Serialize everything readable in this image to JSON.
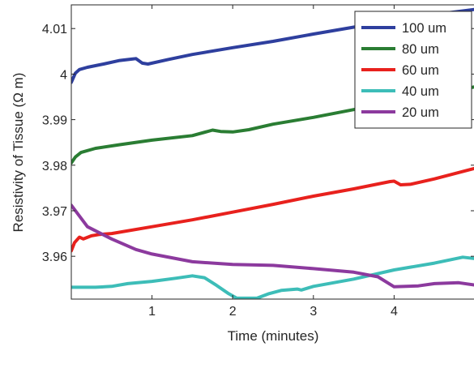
{
  "chart_data": {
    "type": "line",
    "xlabel": "Time (minutes)",
    "ylabel": "Resistivity of Tissue (Ω m)",
    "xlim": [
      0,
      5
    ],
    "ylim": [
      3.9506,
      4.0152
    ],
    "x_ticks": [
      1,
      2,
      3,
      4
    ],
    "x_tick_labels": [
      "1",
      "2",
      "3",
      "4"
    ],
    "y_ticks": [
      3.96,
      3.97,
      3.98,
      3.99,
      4.0,
      4.01
    ],
    "y_tick_labels": [
      "3.96",
      "3.97",
      "3.98",
      "3.99",
      "4",
      "4.01"
    ],
    "grid": false,
    "legend_position": "top-right",
    "series": [
      {
        "name": "100 um",
        "color": "#2e3f9e",
        "x": [
          0,
          0.05,
          0.1,
          0.2,
          0.4,
          0.6,
          0.75,
          0.8,
          0.88,
          0.95,
          1.2,
          1.5,
          2.0,
          2.5,
          3.0,
          3.5,
          4.0,
          4.5,
          5.0
        ],
        "y": [
          3.9982,
          4.0002,
          4.001,
          4.0015,
          4.0022,
          4.003,
          4.0033,
          4.0034,
          4.0024,
          4.0022,
          4.0032,
          4.0043,
          4.0058,
          4.0072,
          4.0088,
          4.0103,
          4.0118,
          4.0131,
          4.0142
        ]
      },
      {
        "name": "80 um",
        "color": "#2a7d33",
        "x": [
          0,
          0.05,
          0.12,
          0.3,
          0.6,
          1.0,
          1.5,
          1.75,
          1.85,
          2.0,
          2.2,
          2.5,
          3.0,
          3.5,
          4.0,
          4.5,
          5.0
        ],
        "y": [
          3.9805,
          3.9818,
          3.9828,
          3.9837,
          3.9845,
          3.9855,
          3.9865,
          3.9877,
          3.9874,
          3.9873,
          3.9878,
          3.989,
          3.9905,
          3.9922,
          3.9938,
          3.9955,
          3.9972
        ]
      },
      {
        "name": "60 um",
        "color": "#e8211d",
        "x": [
          0,
          0.04,
          0.1,
          0.15,
          0.25,
          0.35,
          0.5,
          1.0,
          1.5,
          2.0,
          2.5,
          3.0,
          3.5,
          3.95,
          4.0,
          4.08,
          4.2,
          4.5,
          5.0
        ],
        "y": [
          3.9612,
          3.963,
          3.9642,
          3.9638,
          3.9645,
          3.9648,
          3.965,
          3.9665,
          3.968,
          3.9697,
          3.9714,
          3.9732,
          3.9748,
          3.9764,
          3.9765,
          3.9757,
          3.9758,
          3.977,
          3.9793
        ]
      },
      {
        "name": "40 um",
        "color": "#3dbdb8",
        "x": [
          0,
          0.3,
          0.5,
          0.7,
          1.0,
          1.3,
          1.5,
          1.65,
          1.8,
          1.95,
          2.05,
          2.3,
          2.45,
          2.6,
          2.8,
          2.85,
          3.0,
          3.5,
          4.0,
          4.5,
          4.85,
          5.0
        ],
        "y": [
          3.9532,
          3.9532,
          3.9534,
          3.954,
          3.9545,
          3.9552,
          3.9557,
          3.9553,
          3.9536,
          3.9518,
          3.9508,
          3.9508,
          3.9518,
          3.9525,
          3.9528,
          3.9526,
          3.9534,
          3.955,
          3.957,
          3.9585,
          3.9598,
          3.9595
        ]
      },
      {
        "name": "20 um",
        "color": "#8c3a9e",
        "x": [
          0,
          0.2,
          0.5,
          0.8,
          1.0,
          1.5,
          2.0,
          2.5,
          3.0,
          3.5,
          3.8,
          4.0,
          4.3,
          4.5,
          4.8,
          5.0
        ],
        "y": [
          3.9712,
          3.9665,
          3.9638,
          3.9615,
          3.9605,
          3.9588,
          3.9582,
          3.958,
          3.9573,
          3.9565,
          3.9555,
          3.9533,
          3.9535,
          3.954,
          3.9542,
          3.9537
        ]
      }
    ]
  }
}
